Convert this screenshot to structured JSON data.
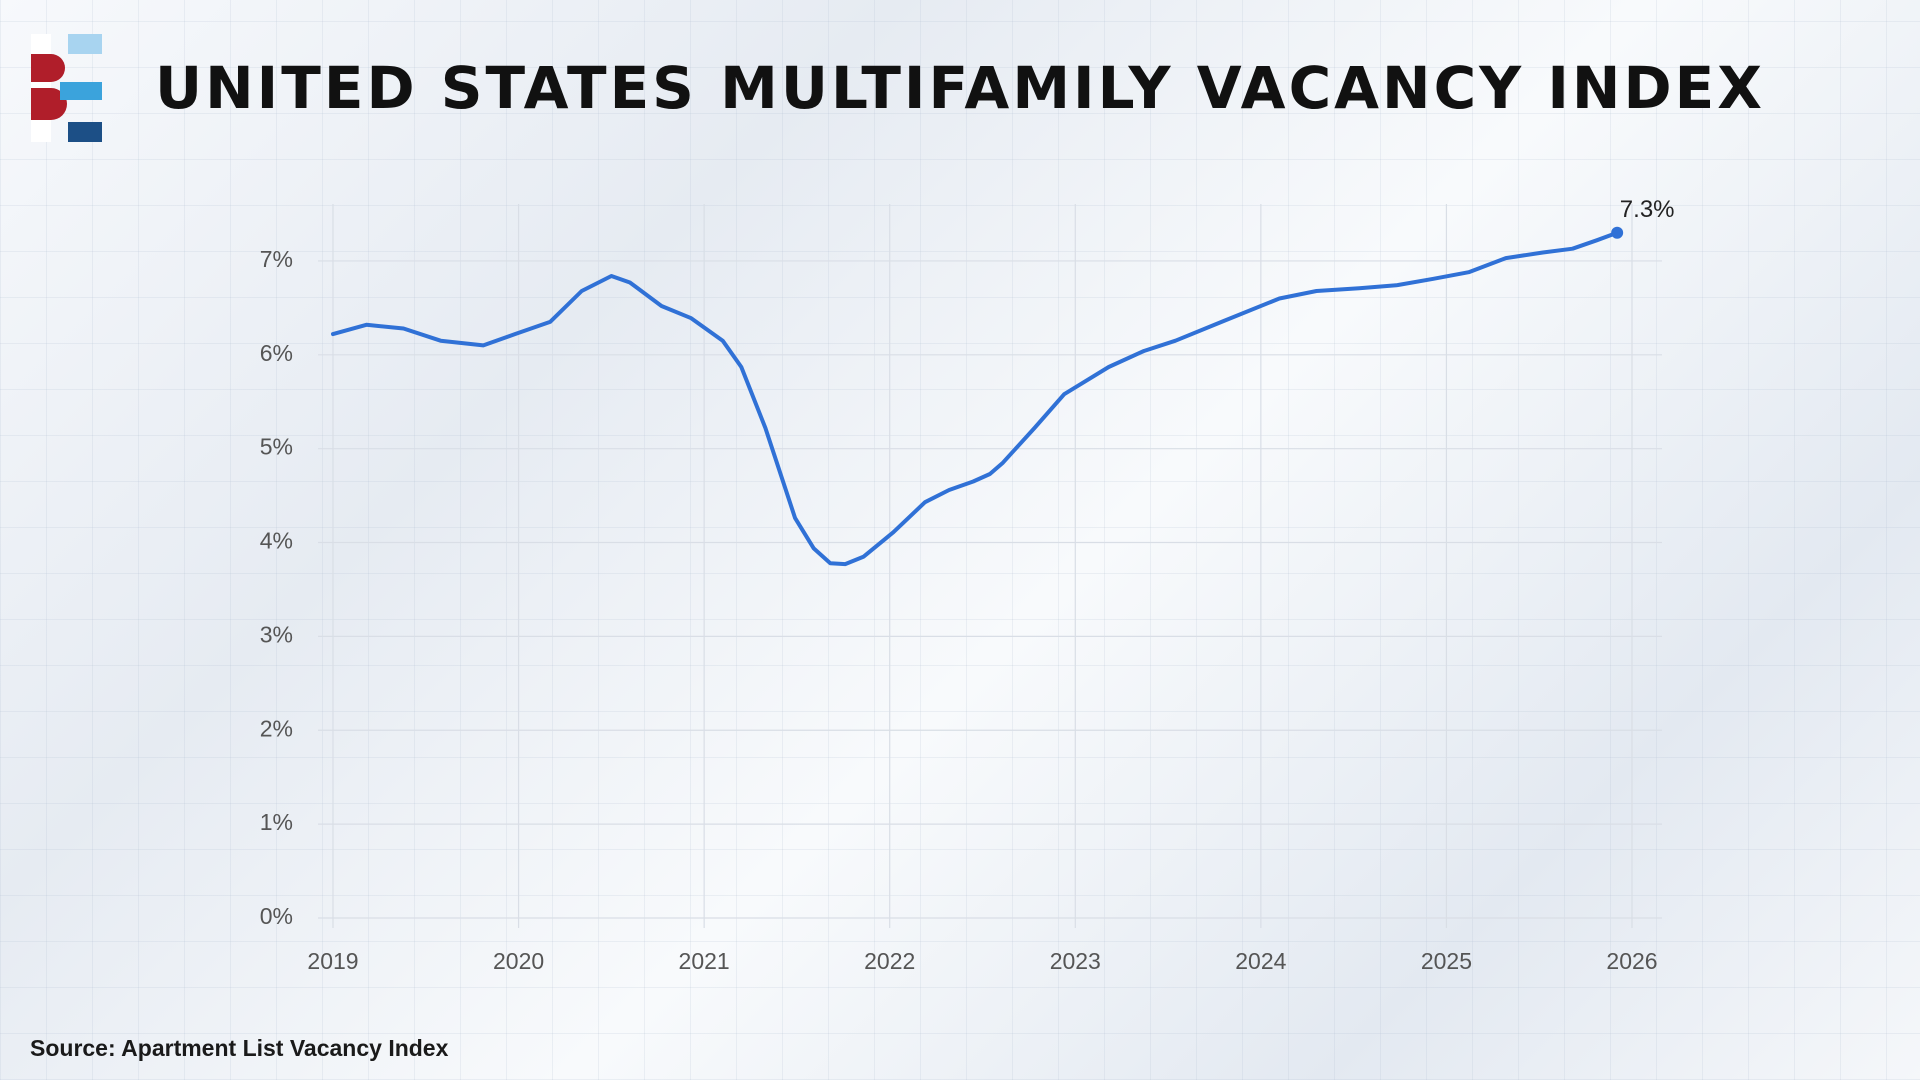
{
  "chart_data": {
    "type": "line",
    "title": "UNITED STATES MULTIFAMILY VACANCY INDEX",
    "source": "Source: Apartment List Vacancy Index",
    "color": "#3071d6",
    "x": [
      2019.0,
      2019.18,
      2019.38,
      2019.58,
      2019.81,
      2019.98,
      2020.17,
      2020.34,
      2020.5,
      2020.6,
      2020.77,
      2020.93,
      2021.1,
      2021.2,
      2021.33,
      2021.49,
      2021.59,
      2021.68,
      2021.76,
      2021.86,
      2022.02,
      2022.19,
      2022.32,
      2022.45,
      2022.54,
      2022.61,
      2022.78,
      2022.94,
      2023.18,
      2023.37,
      2023.54,
      2023.8,
      2024.1,
      2024.3,
      2024.53,
      2024.73,
      2024.93,
      2025.12,
      2025.32,
      2025.52,
      2025.68,
      2025.81,
      2025.92
    ],
    "values": [
      6.22,
      6.32,
      6.28,
      6.15,
      6.1,
      6.22,
      6.35,
      6.68,
      6.84,
      6.77,
      6.52,
      6.39,
      6.15,
      5.87,
      5.22,
      4.26,
      3.94,
      3.78,
      3.77,
      3.85,
      4.11,
      4.43,
      4.56,
      4.65,
      4.73,
      4.85,
      5.22,
      5.58,
      5.87,
      6.04,
      6.15,
      6.36,
      6.6,
      6.68,
      6.71,
      6.74,
      6.81,
      6.88,
      7.03,
      7.09,
      7.13,
      7.22,
      7.3
    ],
    "value_labels": [
      null,
      null,
      null,
      null,
      null,
      null,
      null,
      null,
      null,
      null,
      null,
      null,
      null,
      null,
      null,
      null,
      null,
      null,
      null,
      null,
      null,
      null,
      null,
      null,
      null,
      null,
      null,
      null,
      null,
      null,
      null,
      null,
      null,
      null,
      null,
      null,
      null,
      null,
      null,
      null,
      null,
      null,
      "7.3%"
    ],
    "xlim": [
      2019,
      2026
    ],
    "xticks": [
      2019,
      2020,
      2021,
      2022,
      2023,
      2024,
      2025,
      2026
    ],
    "ylim": [
      0,
      7.5
    ],
    "yticks": [
      {
        "value": 0,
        "label": "0%"
      },
      {
        "value": 1,
        "label": "1%"
      },
      {
        "value": 2,
        "label": "2%"
      },
      {
        "value": 3,
        "label": "3%"
      },
      {
        "value": 4,
        "label": "4%"
      },
      {
        "value": 5,
        "label": "5%"
      },
      {
        "value": 6,
        "label": "6%"
      },
      {
        "value": 7,
        "label": "7%"
      }
    ],
    "grid": true
  }
}
